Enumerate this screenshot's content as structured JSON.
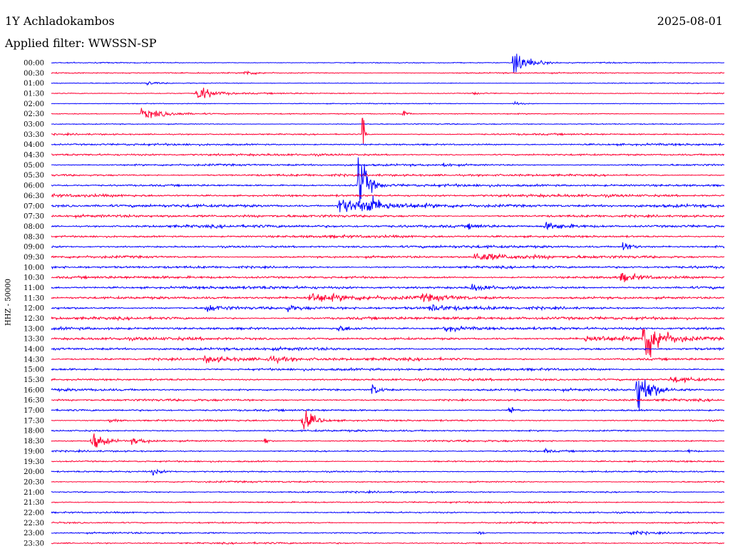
{
  "header": {
    "station": "1Y Achladokambos",
    "date": "2025-08-01",
    "filter_label": "Applied filter: WWSSN-SP"
  },
  "chart_data": {
    "type": "line",
    "title": "1Y Achladokambos",
    "ylabel": "HHZ - 50000",
    "colors": [
      "#0000ff",
      "#ff0033"
    ],
    "time_labels": [
      "00:00",
      "00:30",
      "01:00",
      "01:30",
      "02:00",
      "02:30",
      "03:00",
      "03:30",
      "04:00",
      "04:30",
      "05:00",
      "05:30",
      "06:00",
      "06:30",
      "07:00",
      "07:30",
      "08:00",
      "08:30",
      "09:00",
      "09:30",
      "10:00",
      "10:30",
      "11:00",
      "11:30",
      "12:00",
      "12:30",
      "13:00",
      "13:30",
      "14:00",
      "14:30",
      "15:00",
      "15:30",
      "16:00",
      "16:30",
      "17:00",
      "17:30",
      "18:00",
      "18:30",
      "19:00",
      "19:30",
      "20:00",
      "20:30",
      "21:00",
      "21:30",
      "22:00",
      "22:30",
      "23:00",
      "23:30"
    ],
    "trace_minutes": 30,
    "noise_level": [
      0.6,
      0.7,
      0.5,
      0.7,
      0.5,
      0.6,
      0.6,
      0.9,
      1.1,
      1.2,
      1.2,
      1.3,
      1.4,
      1.5,
      1.6,
      1.5,
      1.6,
      1.4,
      1.4,
      1.4,
      1.4,
      1.4,
      1.6,
      1.7,
      1.7,
      1.7,
      1.5,
      1.6,
      1.6,
      1.5,
      1.4,
      1.3,
      1.3,
      1.2,
      1.1,
      1.0,
      1.0,
      1.0,
      0.9,
      0.9,
      0.9,
      0.9,
      0.9,
      0.9,
      0.9,
      0.9,
      0.9,
      0.9
    ],
    "events": [
      {
        "trace": 0,
        "minute": 20.6,
        "amplitude": 24,
        "duration_min": 0.5
      },
      {
        "trace": 1,
        "minute": 8.6,
        "amplitude": 4,
        "duration_min": 0.4
      },
      {
        "trace": 2,
        "minute": 4.3,
        "amplitude": 3,
        "duration_min": 0.3
      },
      {
        "trace": 3,
        "minute": 6.5,
        "amplitude": 13,
        "duration_min": 0.5
      },
      {
        "trace": 3,
        "minute": 18.8,
        "amplitude": 2,
        "duration_min": 0.3
      },
      {
        "trace": 4,
        "minute": 20.6,
        "amplitude": 3,
        "duration_min": 0.3
      },
      {
        "trace": 5,
        "minute": 4.0,
        "amplitude": 7,
        "duration_min": 1.2
      },
      {
        "trace": 5,
        "minute": 15.7,
        "amplitude": 10,
        "duration_min": 0.1
      },
      {
        "trace": 7,
        "minute": 13.9,
        "amplitude": 60,
        "duration_min": 0.05
      },
      {
        "trace": 10,
        "minute": 17.5,
        "amplitude": 4,
        "duration_min": 0.2
      },
      {
        "trace": 12,
        "minute": 13.7,
        "amplitude": 55,
        "duration_min": 0.3
      },
      {
        "trace": 14,
        "minute": 12.8,
        "amplitude": 11,
        "duration_min": 2.0
      },
      {
        "trace": 14,
        "minute": 14.1,
        "amplitude": 14,
        "duration_min": 0.3
      },
      {
        "trace": 16,
        "minute": 22.0,
        "amplitude": 5,
        "duration_min": 1.2
      },
      {
        "trace": 16,
        "minute": 18.6,
        "amplitude": 3,
        "duration_min": 0.5
      },
      {
        "trace": 18,
        "minute": 25.5,
        "amplitude": 9,
        "duration_min": 0.3
      },
      {
        "trace": 19,
        "minute": 18.8,
        "amplitude": 6,
        "duration_min": 1.5
      },
      {
        "trace": 21,
        "minute": 25.4,
        "amplitude": 6,
        "duration_min": 0.6
      },
      {
        "trace": 22,
        "minute": 18.7,
        "amplitude": 5,
        "duration_min": 0.8
      },
      {
        "trace": 23,
        "minute": 11.5,
        "amplitude": 6,
        "duration_min": 1.4
      },
      {
        "trace": 23,
        "minute": 16.5,
        "amplitude": 4,
        "duration_min": 1.3
      },
      {
        "trace": 24,
        "minute": 6.9,
        "amplitude": 6,
        "duration_min": 0.6
      },
      {
        "trace": 24,
        "minute": 10.5,
        "amplitude": 4,
        "duration_min": 0.4
      },
      {
        "trace": 24,
        "minute": 16.9,
        "amplitude": 5,
        "duration_min": 0.7
      },
      {
        "trace": 26,
        "minute": 12.7,
        "amplitude": 4,
        "duration_min": 0.8
      },
      {
        "trace": 26,
        "minute": 17.5,
        "amplitude": 4,
        "duration_min": 0.8
      },
      {
        "trace": 27,
        "minute": 26.4,
        "amplitude": 40,
        "duration_min": 0.6
      },
      {
        "trace": 27,
        "minute": 23.8,
        "amplitude": 4,
        "duration_min": 1.4
      },
      {
        "trace": 29,
        "minute": 6.8,
        "amplitude": 4,
        "duration_min": 1.2
      },
      {
        "trace": 29,
        "minute": 9.6,
        "amplitude": 4,
        "duration_min": 0.8
      },
      {
        "trace": 31,
        "minute": 27.6,
        "amplitude": 4,
        "duration_min": 1.0
      },
      {
        "trace": 32,
        "minute": 14.3,
        "amplitude": 9,
        "duration_min": 0.3
      },
      {
        "trace": 32,
        "minute": 26.1,
        "amplitude": 38,
        "duration_min": 0.5
      },
      {
        "trace": 34,
        "minute": 20.4,
        "amplitude": 9,
        "duration_min": 0.2
      },
      {
        "trace": 35,
        "minute": 11.2,
        "amplitude": 18,
        "duration_min": 0.4
      },
      {
        "trace": 35,
        "minute": 2.6,
        "amplitude": 3,
        "duration_min": 0.3
      },
      {
        "trace": 37,
        "minute": 1.8,
        "amplitude": 14,
        "duration_min": 0.5
      },
      {
        "trace": 37,
        "minute": 3.6,
        "amplitude": 4,
        "duration_min": 0.8
      },
      {
        "trace": 37,
        "minute": 9.5,
        "amplitude": 9,
        "duration_min": 0.1
      },
      {
        "trace": 38,
        "minute": 22.0,
        "amplitude": 3,
        "duration_min": 0.2
      },
      {
        "trace": 38,
        "minute": 28.4,
        "amplitude": 2,
        "duration_min": 0.3
      },
      {
        "trace": 40,
        "minute": 4.5,
        "amplitude": 4,
        "duration_min": 0.3
      },
      {
        "trace": 46,
        "minute": 19.0,
        "amplitude": 4,
        "duration_min": 0.2
      },
      {
        "trace": 46,
        "minute": 25.8,
        "amplitude": 3,
        "duration_min": 0.5
      }
    ]
  }
}
